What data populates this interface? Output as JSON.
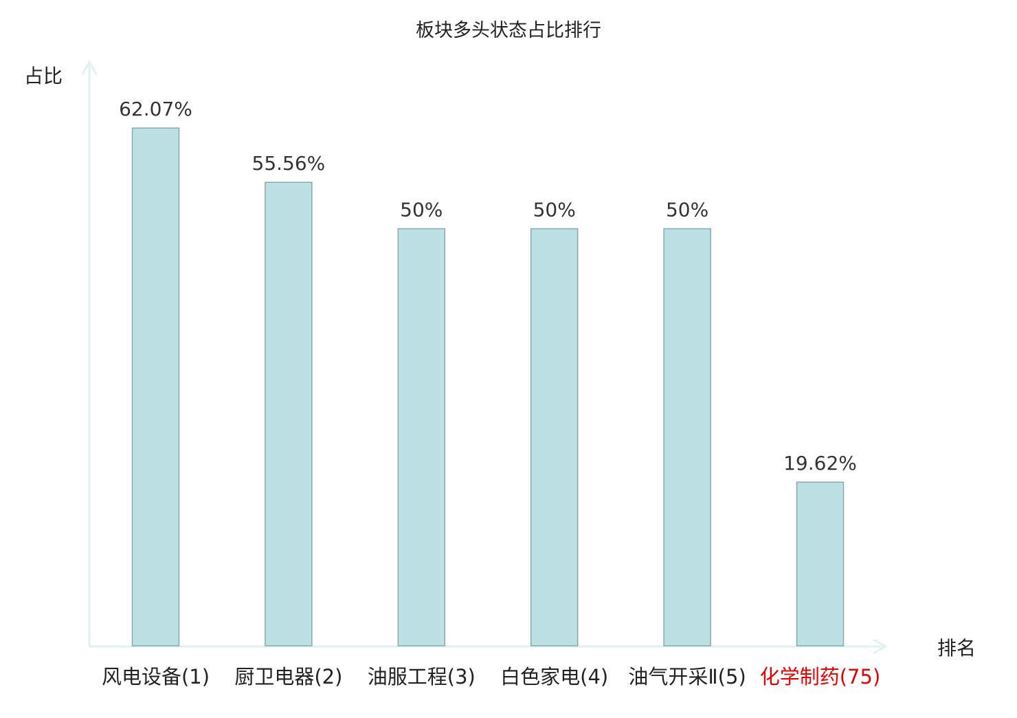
{
  "chart_data": {
    "type": "bar",
    "title": "板块多头状态占比排行",
    "ylabel": "占比",
    "xlabel": "排名",
    "categories": [
      "风电设备(1)",
      "厨卫电器(2)",
      "油服工程(3)",
      "白色家电(4)",
      "油气开采Ⅱ(5)",
      "化学制药(75)"
    ],
    "values": [
      62.07,
      55.56,
      50,
      50,
      50,
      19.62
    ],
    "data_labels": [
      "62.07%",
      "55.56%",
      "50%",
      "50%",
      "50%",
      "19.62%"
    ],
    "highlighted_category": "化学制药(75)",
    "ylim": [
      0,
      70
    ],
    "grid": false,
    "legend": "none",
    "colors": {
      "bar_fill": "#bce0e3",
      "bar_stroke": "#8aa9aa",
      "axis": "#dff2f0",
      "highlight_label": "#e60000",
      "label": "#222222",
      "value_label": "#333333"
    }
  }
}
